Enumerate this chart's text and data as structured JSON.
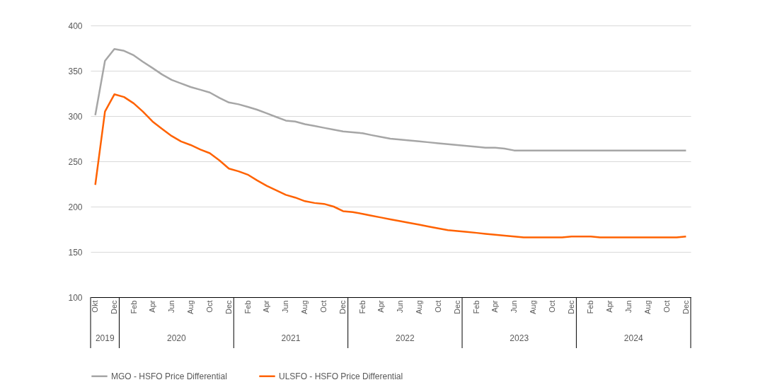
{
  "chart_data": {
    "type": "line",
    "x": [
      "2019-10",
      "2019-11",
      "2019-12",
      "2020-01",
      "2020-02",
      "2020-03",
      "2020-04",
      "2020-05",
      "2020-06",
      "2020-07",
      "2020-08",
      "2020-09",
      "2020-10",
      "2020-11",
      "2020-12",
      "2021-01",
      "2021-02",
      "2021-03",
      "2021-04",
      "2021-05",
      "2021-06",
      "2021-07",
      "2021-08",
      "2021-09",
      "2021-10",
      "2021-11",
      "2021-12",
      "2022-01",
      "2022-02",
      "2022-03",
      "2022-04",
      "2022-05",
      "2022-06",
      "2022-07",
      "2022-08",
      "2022-09",
      "2022-10",
      "2022-11",
      "2022-12",
      "2023-01",
      "2023-02",
      "2023-03",
      "2023-04",
      "2023-05",
      "2023-06",
      "2023-07",
      "2023-08",
      "2023-09",
      "2023-10",
      "2023-11",
      "2023-12",
      "2024-01",
      "2024-02",
      "2024-03",
      "2024-04",
      "2024-05",
      "2024-06",
      "2024-07",
      "2024-08",
      "2024-09",
      "2024-10",
      "2024-11",
      "2024-12"
    ],
    "xticks": [
      {
        "value": "2019-10",
        "label": "Okt"
      },
      {
        "value": "2019-12",
        "label": "Dec"
      },
      {
        "value": "2020-02",
        "label": "Feb"
      },
      {
        "value": "2020-04",
        "label": "Apr"
      },
      {
        "value": "2020-06",
        "label": "Jun"
      },
      {
        "value": "2020-08",
        "label": "Aug"
      },
      {
        "value": "2020-10",
        "label": "Oct"
      },
      {
        "value": "2020-12",
        "label": "Dec"
      },
      {
        "value": "2021-02",
        "label": "Feb"
      },
      {
        "value": "2021-04",
        "label": "Apr"
      },
      {
        "value": "2021-06",
        "label": "Jun"
      },
      {
        "value": "2021-08",
        "label": "Aug"
      },
      {
        "value": "2021-10",
        "label": "Oct"
      },
      {
        "value": "2021-12",
        "label": "Dec"
      },
      {
        "value": "2022-02",
        "label": "Feb"
      },
      {
        "value": "2022-04",
        "label": "Apr"
      },
      {
        "value": "2022-06",
        "label": "Jun"
      },
      {
        "value": "2022-08",
        "label": "Aug"
      },
      {
        "value": "2022-10",
        "label": "Oct"
      },
      {
        "value": "2022-12",
        "label": "Dec"
      },
      {
        "value": "2023-02",
        "label": "Feb"
      },
      {
        "value": "2023-04",
        "label": "Apr"
      },
      {
        "value": "2023-06",
        "label": "Jun"
      },
      {
        "value": "2023-08",
        "label": "Aug"
      },
      {
        "value": "2023-10",
        "label": "Oct"
      },
      {
        "value": "2023-12",
        "label": "Dec"
      },
      {
        "value": "2024-02",
        "label": "Feb"
      },
      {
        "value": "2024-04",
        "label": "Apr"
      },
      {
        "value": "2024-06",
        "label": "Jun"
      },
      {
        "value": "2024-08",
        "label": "Aug"
      },
      {
        "value": "2024-10",
        "label": "Oct"
      },
      {
        "value": "2024-12",
        "label": "Dec"
      }
    ],
    "xlim": [
      "2019-09-16",
      "2024-12-16"
    ],
    "annotations": [
      "2019",
      "2020",
      "2021",
      "2022",
      "2023",
      "2024"
    ],
    "ylim": [
      100,
      400
    ],
    "yticks": [
      100,
      150,
      200,
      250,
      300,
      350,
      400
    ],
    "grid": "y",
    "legend": "bottom",
    "marker": "none",
    "line_style": "solid",
    "series": [
      {
        "name": "MGO - HSFO Price Differential",
        "color": "#a6a6a6",
        "values": [
          301,
          361,
          374,
          372,
          367,
          360,
          353,
          346,
          340,
          336,
          332,
          329,
          326,
          320,
          315,
          313,
          310,
          307,
          303,
          299,
          295,
          294,
          291,
          289,
          287,
          285,
          283,
          282,
          281,
          279,
          277,
          275,
          274,
          273,
          272,
          271,
          270,
          269,
          268,
          267,
          266,
          265,
          265,
          264,
          262,
          262,
          262,
          262,
          262,
          262,
          262,
          262,
          262,
          262,
          262,
          262,
          262,
          262,
          262,
          262,
          262,
          262,
          262
        ]
      },
      {
        "name": "ULSFO - HSFO Price Differential",
        "color": "#ff6200",
        "values": [
          224,
          305,
          324,
          321,
          314,
          305,
          294,
          286,
          278,
          272,
          268,
          263,
          259,
          251,
          242,
          239,
          235,
          229,
          223,
          218,
          213,
          210,
          206,
          204,
          203,
          200,
          195,
          194,
          192,
          190,
          188,
          186,
          184,
          182,
          180,
          178,
          176,
          174,
          173,
          172,
          171,
          170,
          169,
          168,
          167,
          166,
          166,
          166,
          166,
          166,
          167,
          167,
          167,
          166,
          166,
          166,
          166,
          166,
          166,
          166,
          166,
          166,
          167
        ]
      }
    ]
  }
}
